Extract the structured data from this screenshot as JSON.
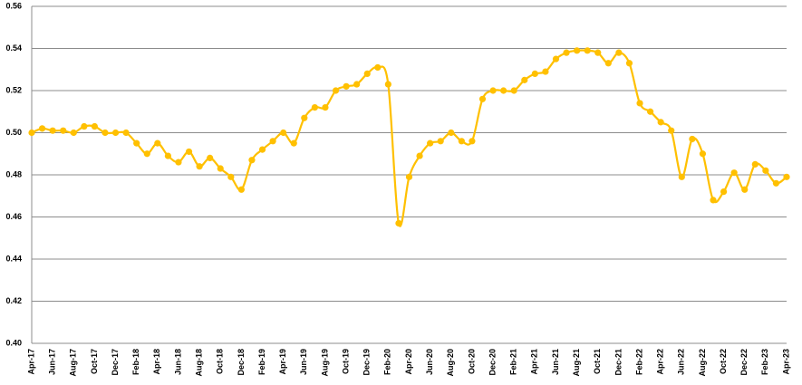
{
  "chart_data": {
    "type": "line",
    "categories": [
      "Apr-17",
      null,
      "Jun-17",
      null,
      "Aug-17",
      null,
      "Oct-17",
      null,
      "Dec-17",
      null,
      "Feb-18",
      null,
      "Apr-18",
      null,
      "Jun-18",
      null,
      "Aug-18",
      null,
      "Oct-18",
      null,
      "Dec-18",
      null,
      "Feb-19",
      null,
      "Apr-19",
      null,
      "Jun-19",
      null,
      "Aug-19",
      null,
      "Oct-19",
      null,
      "Dec-19",
      null,
      "Feb-20",
      null,
      "Apr-20",
      null,
      "Jun-20",
      null,
      "Aug-20",
      null,
      "Oct-20",
      null,
      "Dec-20",
      null,
      "Feb-21",
      null,
      "Apr-21",
      null,
      "Jun-21",
      null,
      "Aug-21",
      null,
      "Oct-21",
      null,
      "Dec-21",
      null,
      "Feb-22",
      null,
      "Apr-22",
      null,
      "Jun-22",
      null,
      "Aug-22",
      null,
      "Oct-22",
      null,
      "Dec-22",
      null,
      "Feb-23",
      null,
      "Apr-23"
    ],
    "series": [
      {
        "color": "#ffc000",
        "values": [
          0.5,
          0.502,
          0.501,
          0.501,
          0.5,
          0.503,
          0.503,
          0.5,
          0.5,
          0.5,
          0.495,
          0.49,
          0.495,
          0.489,
          0.486,
          0.491,
          0.484,
          0.488,
          0.483,
          0.479,
          0.473,
          0.487,
          0.492,
          0.496,
          0.5,
          0.495,
          0.507,
          0.512,
          0.512,
          0.52,
          0.522,
          0.523,
          0.528,
          0.531,
          0.523,
          0.457,
          0.479,
          0.489,
          0.495,
          0.496,
          0.5,
          0.496,
          0.496,
          0.516,
          0.52,
          0.52,
          0.52,
          0.525,
          0.528,
          0.529,
          0.535,
          0.538,
          0.539,
          0.539,
          0.538,
          0.533,
          0.538,
          0.533,
          0.514,
          0.51,
          0.505,
          0.501,
          0.479,
          0.497,
          0.49,
          0.468,
          0.472,
          0.481,
          0.473,
          0.485,
          0.482,
          0.476,
          0.479
        ]
      }
    ],
    "ylim": [
      0.4,
      0.56
    ],
    "yticks": [
      {
        "value": 0.4,
        "label": "0.40"
      },
      0.42,
      0.44,
      0.46,
      0.48,
      {
        "value": 0.5,
        "label": "0.50"
      },
      0.52,
      0.54,
      0.56
    ],
    "grid": true
  }
}
